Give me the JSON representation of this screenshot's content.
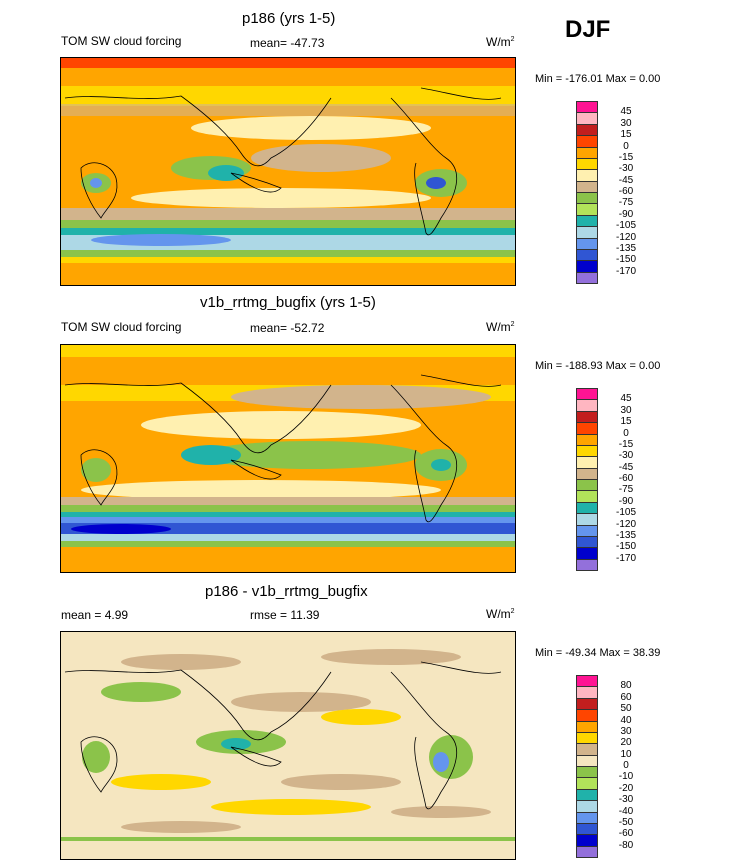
{
  "season": "DJF",
  "panels": [
    {
      "title": "p186 (yrs 1-5)",
      "left_label": "TOM SW cloud forcing",
      "center_label": "mean= -47.73",
      "units": "W/m",
      "units_sup": "2",
      "minmax": "Min = -176.01 Max =   0.00",
      "colorbar": {
        "labels": [
          "45",
          "30",
          "15",
          "0",
          "-15",
          "-30",
          "-45",
          "-60",
          "-75",
          "-90",
          "-105",
          "-120",
          "-135",
          "-150",
          "-170"
        ],
        "colors": [
          "#ff1493",
          "#ffb6c1",
          "#c21e1e",
          "#ff4500",
          "#ffa500",
          "#ffd700",
          "#fff0b0",
          "#d2b48c",
          "#8bc34a",
          "#b2e35a",
          "#20b2aa",
          "#add8e6",
          "#6495ed",
          "#3056d3",
          "#0000cd",
          "#9370db"
        ]
      }
    },
    {
      "title": "v1b_rrtmg_bugfix (yrs 1-5)",
      "left_label": "TOM SW cloud forcing",
      "center_label": "mean= -52.72",
      "units": "W/m",
      "units_sup": "2",
      "minmax": "Min = -188.93 Max =   0.00",
      "colorbar": {
        "labels": [
          "45",
          "30",
          "15",
          "0",
          "-15",
          "-30",
          "-45",
          "-60",
          "-75",
          "-90",
          "-105",
          "-120",
          "-135",
          "-150",
          "-170"
        ],
        "colors": [
          "#ff1493",
          "#ffb6c1",
          "#c21e1e",
          "#ff4500",
          "#ffa500",
          "#ffd700",
          "#fff0b0",
          "#d2b48c",
          "#8bc34a",
          "#b2e35a",
          "#20b2aa",
          "#add8e6",
          "#6495ed",
          "#3056d3",
          "#0000cd",
          "#9370db"
        ]
      }
    },
    {
      "title": "p186 - v1b_rrtmg_bugfix",
      "left_label": "mean =   4.99",
      "center_label": "rmse =  11.39",
      "units": "W/m",
      "units_sup": "2",
      "minmax": "Min = -49.34 Max =  38.39",
      "colorbar": {
        "labels": [
          "80",
          "60",
          "50",
          "40",
          "30",
          "20",
          "10",
          "0",
          "-10",
          "-20",
          "-30",
          "-40",
          "-50",
          "-60",
          "-80"
        ],
        "colors": [
          "#ff1493",
          "#ffb6c1",
          "#c21e1e",
          "#ff4500",
          "#ffa500",
          "#ffd700",
          "#d2b48c",
          "#f5e6c0",
          "#8bc34a",
          "#b2e35a",
          "#20b2aa",
          "#add8e6",
          "#6495ed",
          "#3056d3",
          "#0000cd",
          "#9370db"
        ]
      }
    }
  ],
  "chart_data": [
    {
      "type": "heatmap",
      "title": "p186 (yrs 1-5)",
      "variable": "TOM SW cloud forcing",
      "mean": -47.73,
      "min": -176.01,
      "max": 0.0,
      "units": "W/m2",
      "levels": [
        -170,
        -150,
        -135,
        -120,
        -105,
        -90,
        -75,
        -60,
        -45,
        -30,
        -15,
        0,
        15,
        30,
        45
      ]
    },
    {
      "type": "heatmap",
      "title": "v1b_rrtmg_bugfix (yrs 1-5)",
      "variable": "TOM SW cloud forcing",
      "mean": -52.72,
      "min": -188.93,
      "max": 0.0,
      "units": "W/m2",
      "levels": [
        -170,
        -150,
        -135,
        -120,
        -105,
        -90,
        -75,
        -60,
        -45,
        -30,
        -15,
        0,
        15,
        30,
        45
      ]
    },
    {
      "type": "heatmap",
      "title": "p186 - v1b_rrtmg_bugfix",
      "mean": 4.99,
      "rmse": 11.39,
      "min": -49.34,
      "max": 38.39,
      "units": "W/m2",
      "levels": [
        -80,
        -60,
        -50,
        -40,
        -30,
        -20,
        -10,
        0,
        10,
        20,
        30,
        40,
        50,
        60,
        80
      ]
    }
  ]
}
